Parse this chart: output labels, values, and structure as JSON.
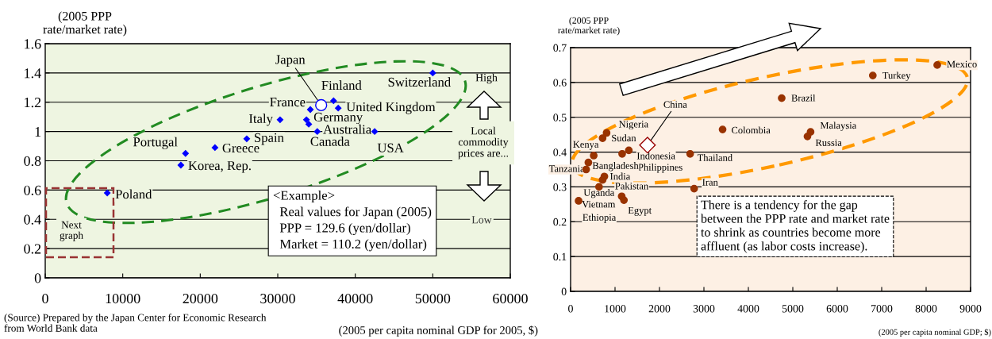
{
  "chart_data": [
    {
      "type": "scatter",
      "xlabel": "(2005 per capita nominal GDP for 2005, $)",
      "ylabel": "(2005 PPP\nrate/market rate)",
      "xlim": [
        0,
        60000
      ],
      "ylim": [
        0,
        1.6
      ],
      "xticks": [
        0,
        10000,
        20000,
        30000,
        40000,
        50000,
        60000
      ],
      "yticks": [
        0,
        0.2,
        0.4,
        0.6,
        0.8,
        1,
        1.2,
        1.4,
        1.6
      ],
      "grid": "y",
      "series": [
        {
          "color": "#0000ff",
          "marker": "diamond",
          "x": [
            50000,
            37200,
            37800,
            34200,
            33700,
            34000,
            35100,
            42500,
            30300,
            26000,
            21900,
            18100,
            17500,
            8000
          ],
          "values": [
            1.4,
            1.21,
            1.16,
            1.15,
            1.08,
            1.05,
            1.0,
            1.0,
            1.08,
            0.95,
            0.89,
            0.85,
            0.77,
            0.58
          ]
        },
        {
          "color": "#0000ff",
          "marker": "circle",
          "x": [
            35600
          ],
          "values": [
            1.18
          ]
        }
      ],
      "annotations": [
        {
          "text": "Switzerland",
          "x": 50000,
          "y": 1.4
        },
        {
          "text": "Japan",
          "x": 35600,
          "y": 1.18
        },
        {
          "text": "Finland",
          "x": 37200,
          "y": 1.21
        },
        {
          "text": "United Kingdom",
          "x": 37800,
          "y": 1.16
        },
        {
          "text": "France",
          "x": 34200,
          "y": 1.15
        },
        {
          "text": "Germany",
          "x": 33700,
          "y": 1.08
        },
        {
          "text": "Australia",
          "x": 34000,
          "y": 1.05
        },
        {
          "text": "Canada",
          "x": 35100,
          "y": 1.0
        },
        {
          "text": "USA",
          "x": 42500,
          "y": 1.0
        },
        {
          "text": "Italy",
          "x": 30300,
          "y": 1.08
        },
        {
          "text": "Spain",
          "x": 26000,
          "y": 0.95
        },
        {
          "text": "Greece",
          "x": 21900,
          "y": 0.89
        },
        {
          "text": "Portugal",
          "x": 18100,
          "y": 0.85
        },
        {
          "text": "Korea, Rep.",
          "x": 17500,
          "y": 0.77
        },
        {
          "text": "Poland",
          "x": 8000,
          "y": 0.58
        },
        "High",
        "Local\ncommodity\nprices are...",
        "Low",
        "Next\ngraph",
        "<Example>\n  Real values for Japan (2005)\n  PPP = 129.6 (yen/dollar)\n  Market = 110.2 (yen/dollar)",
        "(Source) Prepared by the Japan Center for Economic Research\nfrom World Bank data"
      ]
    },
    {
      "type": "scatter",
      "xlabel": "(2005 per capita nominal GDP; $)",
      "ylabel": "(2005 PPP\nrate/market rate)",
      "xlim": [
        0,
        9000
      ],
      "ylim": [
        0,
        0.7
      ],
      "xticks": [
        0,
        1000,
        2000,
        3000,
        4000,
        5000,
        6000,
        7000,
        8000,
        9000
      ],
      "yticks": [
        0,
        0.1,
        0.2,
        0.3,
        0.4,
        0.5,
        0.6,
        0.7
      ],
      "grid": "y",
      "series": [
        {
          "color": "#993300",
          "marker": "circle",
          "x": [
            8250,
            6800,
            4750,
            3420,
            5400,
            5330,
            2690,
            2780,
            810,
            720,
            520,
            1310,
            1160,
            400,
            350,
            760,
            720,
            640,
            1150,
            1200,
            180
          ],
          "values": [
            0.65,
            0.62,
            0.555,
            0.465,
            0.458,
            0.445,
            0.395,
            0.295,
            0.455,
            0.44,
            0.39,
            0.405,
            0.395,
            0.37,
            0.35,
            0.33,
            0.32,
            0.3,
            0.273,
            0.262,
            0.26
          ]
        },
        {
          "color": "#990000",
          "marker": "diamond",
          "x": [
            1730
          ],
          "values": [
            0.42
          ]
        }
      ],
      "annotations": [
        {
          "text": "Mexico",
          "x": 8250,
          "y": 0.65
        },
        {
          "text": "Turkey",
          "x": 6800,
          "y": 0.62
        },
        {
          "text": "Brazil",
          "x": 4750,
          "y": 0.555
        },
        {
          "text": "Colombia",
          "x": 3420,
          "y": 0.465
        },
        {
          "text": "Malaysia",
          "x": 5400,
          "y": 0.458
        },
        {
          "text": "Russia",
          "x": 5330,
          "y": 0.445
        },
        {
          "text": "Thailand",
          "x": 2690,
          "y": 0.395
        },
        {
          "text": "Iran",
          "x": 2780,
          "y": 0.295
        },
        {
          "text": "China",
          "x": 1730,
          "y": 0.42
        },
        {
          "text": "Nigeria",
          "x": 810,
          "y": 0.455
        },
        {
          "text": "Sudan",
          "x": 720,
          "y": 0.44
        },
        {
          "text": "Kenya",
          "x": 520,
          "y": 0.39
        },
        {
          "text": "Indonesia",
          "x": 1310,
          "y": 0.405
        },
        {
          "text": "Philippines",
          "x": 1160,
          "y": 0.395
        },
        {
          "text": "Bangladesh",
          "x": 400,
          "y": 0.37
        },
        {
          "text": "Tanzania",
          "x": 350,
          "y": 0.35
        },
        {
          "text": "India",
          "x": 760,
          "y": 0.33
        },
        {
          "text": "Uganda",
          "x": 720,
          "y": 0.32
        },
        {
          "text": "Pakistan",
          "x": 640,
          "y": 0.3
        },
        {
          "text": "Vietnam",
          "x": 1150,
          "y": 0.273
        },
        {
          "text": "Egypt",
          "x": 1200,
          "y": 0.262
        },
        {
          "text": "Ethiopia",
          "x": 180,
          "y": 0.26
        },
        "There is a tendency for the gap\nbetween the PPP rate and market rate\nto shrink as countries become more\naffluent (as labor costs increase)."
      ]
    }
  ]
}
